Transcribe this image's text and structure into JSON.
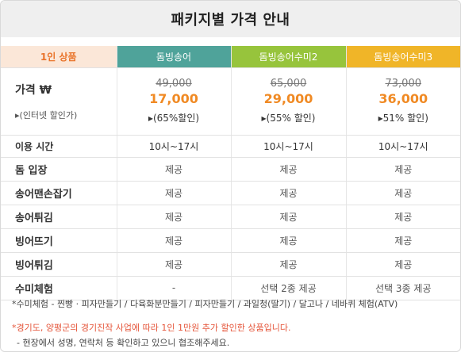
{
  "title": "패키지별 가격 안내",
  "table": {
    "header": {
      "corner": "1인 상품",
      "packages": [
        "돔빙송어",
        "돔빙송어수미2",
        "돔빙송어수미3"
      ]
    },
    "price": {
      "label": "가격 ₩",
      "sublabel": "▸(인터넷 할인가)",
      "cells": [
        {
          "original": "49,000",
          "sale": "17,000",
          "discount": "▸(65%할인)"
        },
        {
          "original": "65,000",
          "sale": "29,000",
          "discount": "▸(55% 할인)"
        },
        {
          "original": "73,000",
          "sale": "36,000",
          "discount": "▸51% 할인)"
        }
      ]
    },
    "time": {
      "label": "이용 시간",
      "values": [
        "10시~17시",
        "10시~17시",
        "10시~17시"
      ]
    },
    "rows": [
      {
        "label": "돔 입장",
        "values": [
          "제공",
          "제공",
          "제공"
        ]
      },
      {
        "label": "송어맨손잡기",
        "values": [
          "제공",
          "제공",
          "제공"
        ]
      },
      {
        "label": "송어튀김",
        "values": [
          "제공",
          "제공",
          "제공"
        ]
      },
      {
        "label": "빙어뜨기",
        "values": [
          "제공",
          "제공",
          "제공"
        ]
      },
      {
        "label": "빙어튀김",
        "values": [
          "제공",
          "제공",
          "제공"
        ]
      },
      {
        "label": "수미체험",
        "values": [
          "-",
          "선택 2종 제공",
          "선택 3종 제공"
        ]
      }
    ]
  },
  "notes": {
    "note1": "*수미체험 - 찐빵 · 피자만들기 / 다육화분만들기 / 피자만들기 / 과일청(딸기) / 달고나 / 네바퀴 체험(ATV)",
    "note2": "*경기도, 양평군의 경기진작 사업에 따라 1인 1만원 추가 할인한 상품입니다.",
    "note3": "- 현장에서 성명, 연락처 등 확인하고 있으니 협조해주세요."
  },
  "colors": {
    "corner_bg": "#fbe7d8",
    "corner_text": "#e9742b",
    "pkg1": "#4fa39a",
    "pkg2": "#97c43c",
    "pkg3": "#f0b528",
    "sale_price": "#f08a24",
    "notice": "#e5553a"
  }
}
